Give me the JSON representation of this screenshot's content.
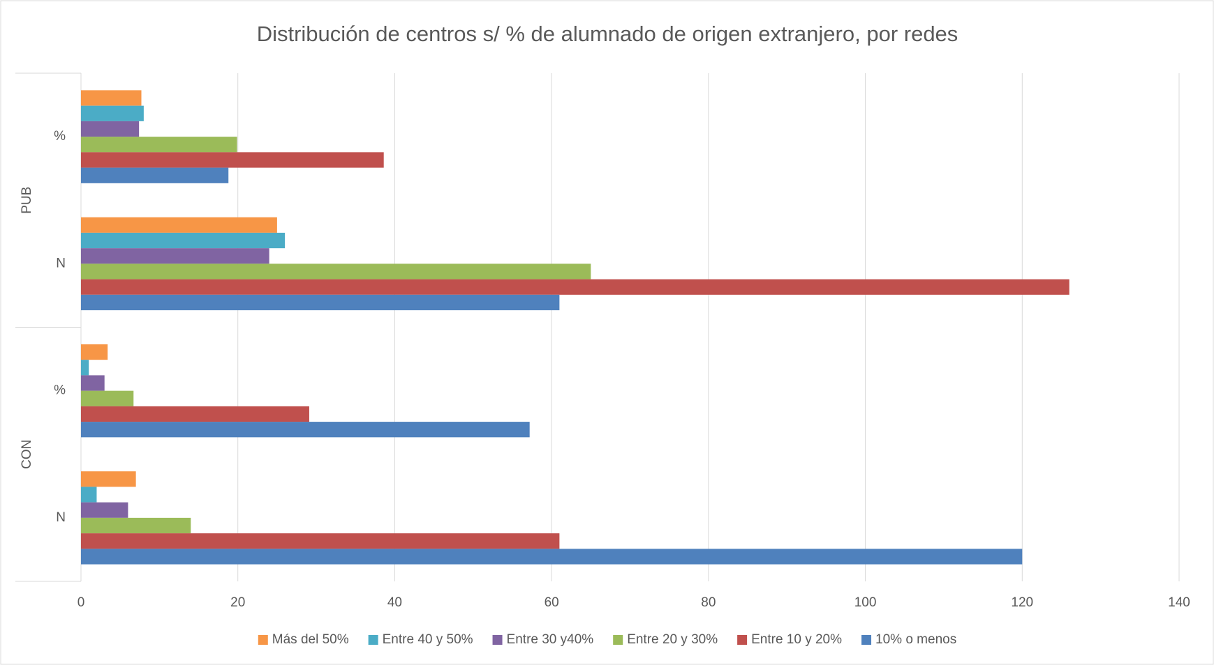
{
  "chart_data": {
    "type": "bar",
    "orientation": "horizontal",
    "title": "Distribución de centros s/ % de alumnado de origen extranjero, por redes",
    "groups": [
      "PUB",
      "CON"
    ],
    "categories": [
      "%",
      "N",
      "%",
      "N"
    ],
    "series": [
      {
        "name": "Más del 50%",
        "color": "#f79646",
        "values": [
          7.7,
          25,
          3.4,
          7
        ]
      },
      {
        "name": "Entre 40 y 50%",
        "color": "#4bacc6",
        "values": [
          8.0,
          26,
          1.0,
          2
        ]
      },
      {
        "name": "Entre 30 y40%",
        "color": "#8064a2",
        "values": [
          7.4,
          24,
          3.0,
          6
        ]
      },
      {
        "name": "Entre 20 y 30%",
        "color": "#9bbb59",
        "values": [
          19.9,
          65,
          6.7,
          14
        ]
      },
      {
        "name": "Entre 10 y 20%",
        "color": "#c0504d",
        "values": [
          38.6,
          126,
          29.1,
          61
        ]
      },
      {
        "name": "10% o menos",
        "color": "#4f81bd",
        "values": [
          18.8,
          61,
          57.2,
          120
        ]
      }
    ],
    "xlim": [
      0,
      140
    ],
    "xticks": [
      0,
      20,
      40,
      60,
      80,
      100,
      120,
      140
    ],
    "grid": true,
    "legend": "bottom"
  }
}
